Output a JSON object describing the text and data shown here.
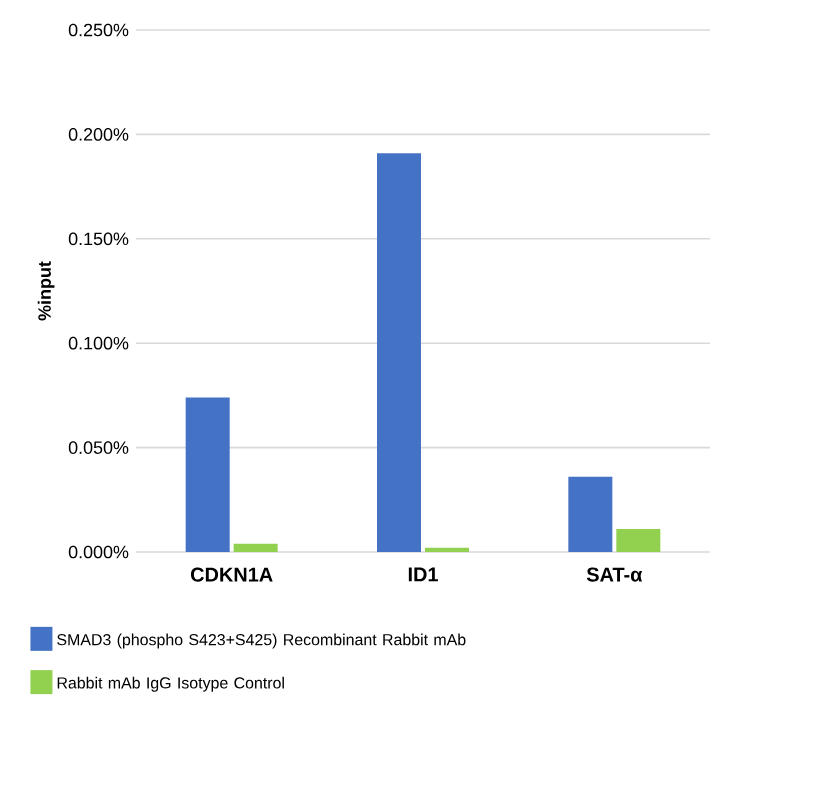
{
  "chart_data": {
    "type": "bar",
    "ylabel": "%input",
    "categories": [
      "CDKN1A",
      "ID1",
      "SAT-α"
    ],
    "series": [
      {
        "name": "SMAD3 (phospho S423+S425) Recombinant Rabbit mAb",
        "color": "#4472c4",
        "values": [
          0.074,
          0.191,
          0.036
        ]
      },
      {
        "name": "Rabbit mAb IgG Isotype Control",
        "color": "#92d050",
        "values": [
          0.004,
          0.002,
          0.011
        ]
      }
    ],
    "ylim": [
      0,
      0.25
    ],
    "yticks": [
      {
        "value": 0,
        "label": "0.000%"
      },
      {
        "value": 0.05,
        "label": "0.050%"
      },
      {
        "value": 0.1,
        "label": "0.100%"
      },
      {
        "value": 0.15,
        "label": "0.150%"
      },
      {
        "value": 0.2,
        "label": "0.200%"
      },
      {
        "value": 0.25,
        "label": "0.250%"
      }
    ],
    "grid": "y",
    "legend": "bottom"
  }
}
